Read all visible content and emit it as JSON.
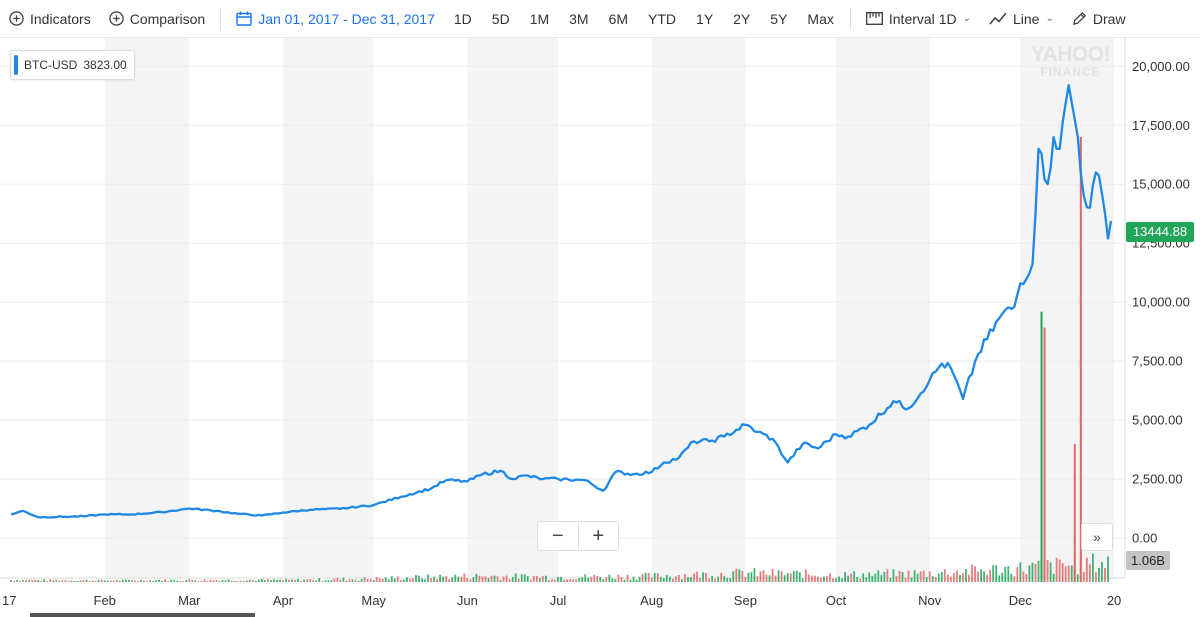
{
  "toolbar": {
    "indicators": "Indicators",
    "comparison": "Comparison",
    "date_range": "Jan 01, 2017 - Dec 31, 2017",
    "ranges": [
      "1D",
      "5D",
      "1M",
      "3M",
      "6M",
      "YTD",
      "1Y",
      "2Y",
      "5Y",
      "Max"
    ],
    "interval_label": "Interval",
    "interval_value": "1D",
    "chart_type": "Line",
    "draw": "Draw"
  },
  "legend": {
    "symbol": "BTC-USD",
    "value": "3823.00"
  },
  "current_price": "13444.88",
  "volume_label": "1.06B",
  "watermark": {
    "line1": "YAHOO!",
    "line2": "FINANCE"
  },
  "zoom": {
    "minus": "−",
    "plus": "+"
  },
  "expand_label": "»",
  "colors": {
    "line": "#1e88e5",
    "up": "#21a559",
    "down": "#e06666",
    "band": "#f4f4f4"
  },
  "chart_data": {
    "type": "line",
    "series": [
      {
        "name": "BTC-USD",
        "x": [
          "2017-01-01",
          "2017-01-05",
          "2017-01-10",
          "2017-01-18",
          "2017-01-25",
          "2017-02-01",
          "2017-02-10",
          "2017-02-20",
          "2017-03-01",
          "2017-03-10",
          "2017-03-17",
          "2017-03-25",
          "2017-04-01",
          "2017-04-10",
          "2017-04-20",
          "2017-05-01",
          "2017-05-10",
          "2017-05-20",
          "2017-05-25",
          "2017-06-01",
          "2017-06-06",
          "2017-06-12",
          "2017-06-16",
          "2017-06-20",
          "2017-06-26",
          "2017-07-01",
          "2017-07-10",
          "2017-07-16",
          "2017-07-20",
          "2017-07-26",
          "2017-08-01",
          "2017-08-05",
          "2017-08-10",
          "2017-08-15",
          "2017-08-20",
          "2017-08-25",
          "2017-09-01",
          "2017-09-05",
          "2017-09-10",
          "2017-09-15",
          "2017-09-20",
          "2017-09-25",
          "2017-10-01",
          "2017-10-05",
          "2017-10-12",
          "2017-10-20",
          "2017-10-25",
          "2017-11-01",
          "2017-11-05",
          "2017-11-08",
          "2017-11-12",
          "2017-11-17",
          "2017-11-25",
          "2017-11-29",
          "2017-12-01",
          "2017-12-05",
          "2017-12-07",
          "2017-12-10",
          "2017-12-12",
          "2017-12-14",
          "2017-12-17",
          "2017-12-20",
          "2017-12-22",
          "2017-12-24",
          "2017-12-26",
          "2017-12-28",
          "2017-12-30",
          "2017-12-31"
        ],
        "y": [
          1000,
          1150,
          880,
          900,
          920,
          1000,
          1000,
          1100,
          1250,
          1150,
          1030,
          950,
          1080,
          1200,
          1240,
          1400,
          1750,
          2100,
          2450,
          2400,
          2700,
          2850,
          2500,
          2650,
          2500,
          2500,
          2450,
          2000,
          2800,
          2700,
          2800,
          3200,
          3400,
          4100,
          4100,
          4300,
          4800,
          4500,
          4200,
          3200,
          4000,
          3800,
          4400,
          4300,
          4800,
          5800,
          5500,
          6700,
          7400,
          7200,
          5900,
          7800,
          9500,
          9800,
          10800,
          11600,
          16500,
          15000,
          17000,
          16500,
          19200,
          17000,
          14500,
          14000,
          15500,
          14600,
          12700,
          13444.88
        ]
      }
    ],
    "xlabel": "",
    "ylabel": "",
    "x_ticks": [
      "17",
      "Feb",
      "Mar",
      "Apr",
      "May",
      "Jun",
      "Jul",
      "Aug",
      "Sep",
      "Oct",
      "Nov",
      "Dec",
      "20"
    ],
    "y_ticks": [
      "0.00",
      "2,500.00",
      "5,000.00",
      "7,500.00",
      "10,000.00",
      "12,500.00",
      "15,000.00",
      "17,500.00",
      "20,000.00"
    ],
    "ylim": [
      0,
      21200
    ],
    "volume": {
      "name": "Volume",
      "monthly_level": [
        0.1,
        0.08,
        0.1,
        0.1,
        0.18,
        0.3,
        0.25,
        0.3,
        0.45,
        0.35,
        0.45,
        0.7,
        1.0
      ],
      "spikes": [
        {
          "x": "2017-12-08",
          "value": 2.55,
          "dir": "up"
        },
        {
          "x": "2017-12-09",
          "value": 2.4,
          "dir": "down"
        },
        {
          "x": "2017-12-19",
          "value": 1.3,
          "dir": "down"
        },
        {
          "x": "2017-12-21",
          "value": 4.2,
          "dir": "down"
        }
      ]
    },
    "grid": "alternating-month-bands",
    "legend_position": "top-left"
  }
}
